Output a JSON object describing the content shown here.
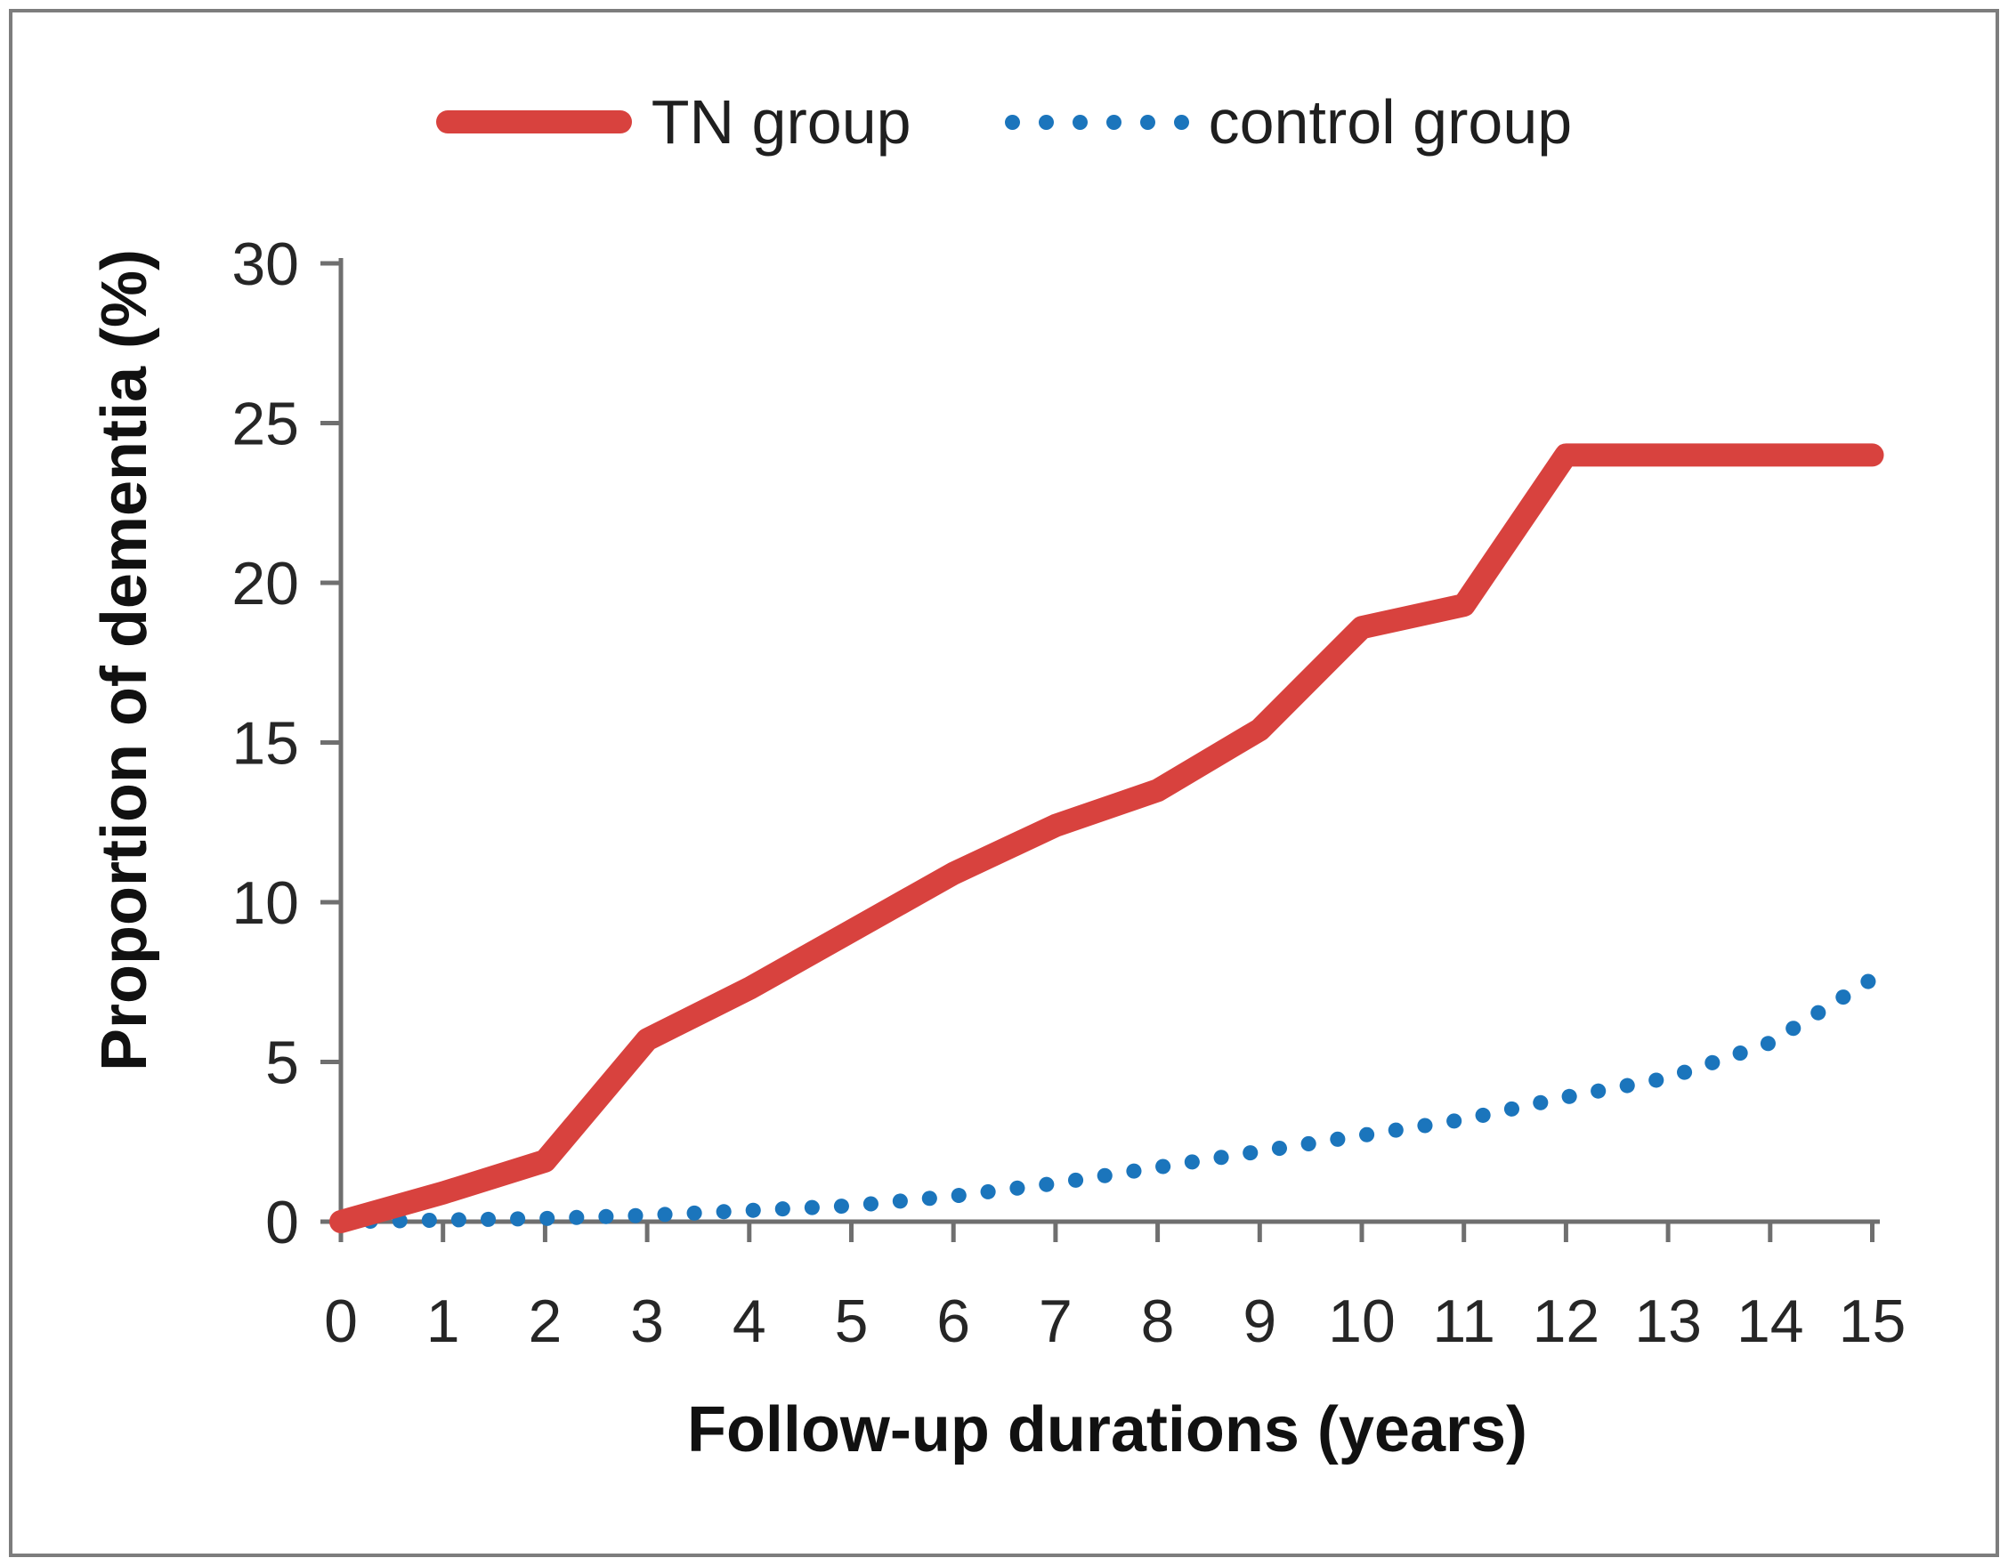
{
  "colors": {
    "tn_red": "#d8423e",
    "control_blue": "#1b75bc",
    "axis_gray": "#6f6f6f",
    "tick_text": "#262626",
    "frame_gray": "#7d7d7d"
  },
  "chart_data": {
    "type": "line",
    "title": "",
    "xlabel": "Follow-up durations (years)",
    "ylabel": "Proportion of dementia (%)",
    "x": [
      0,
      1,
      2,
      3,
      4,
      5,
      6,
      7,
      8,
      9,
      10,
      11,
      12,
      13,
      14,
      15
    ],
    "x_ticks": [
      0,
      1,
      2,
      3,
      4,
      5,
      6,
      7,
      8,
      9,
      10,
      11,
      12,
      13,
      14,
      15
    ],
    "y_ticks": [
      0,
      5,
      10,
      15,
      20,
      25,
      30
    ],
    "ylim": [
      0,
      30
    ],
    "xlim": [
      0,
      15
    ],
    "grid": false,
    "legend_position": "top",
    "series": [
      {
        "name": "TN group",
        "style": "solid",
        "color": "#d8423e",
        "values": [
          0,
          0.9,
          1.9,
          5.7,
          7.3,
          9.1,
          10.9,
          12.4,
          13.5,
          15.4,
          18.6,
          19.3,
          24.0,
          24.0,
          24.0,
          24.0
        ]
      },
      {
        "name": "control group",
        "style": "dotted",
        "color": "#1b75bc",
        "values": [
          0,
          0.05,
          0.1,
          0.2,
          0.35,
          0.5,
          0.8,
          1.2,
          1.7,
          2.2,
          2.7,
          3.2,
          3.9,
          4.5,
          5.6,
          7.6
        ]
      }
    ]
  }
}
